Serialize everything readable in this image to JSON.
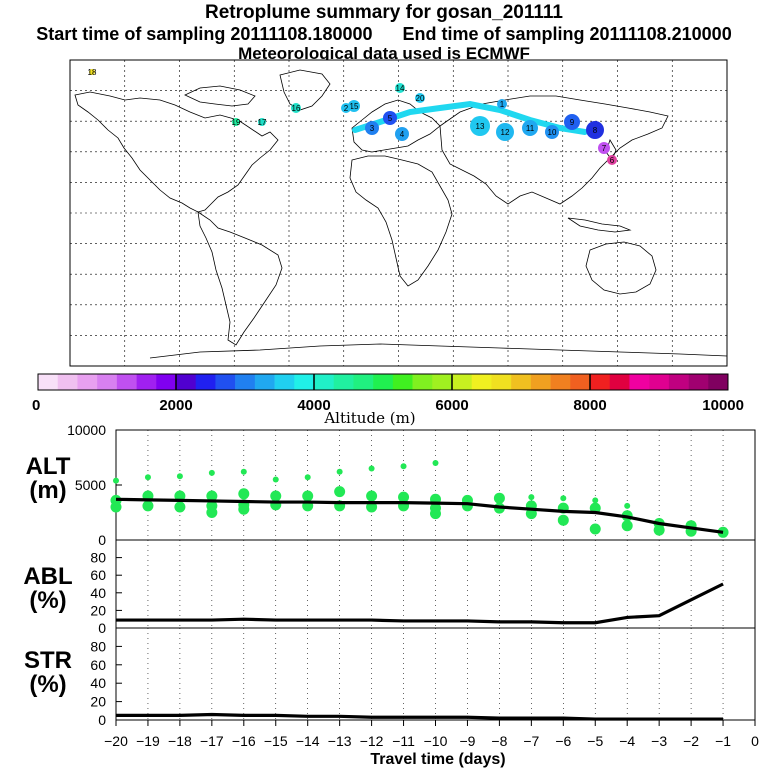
{
  "header": {
    "title": "Retroplume summary for gosan_201111",
    "start_label": "Start time of sampling 20111108.180000",
    "end_label": "End time of sampling 20111108.210000",
    "met_label": "Meteorological data used is ECMWF"
  },
  "colorbar": {
    "colors": [
      "#f8e0f8",
      "#f0c0f0",
      "#e8a0f0",
      "#d880f0",
      "#c050f0",
      "#a020f0",
      "#8000f0",
      "#5000d0",
      "#2020f0",
      "#2050f0",
      "#2080f0",
      "#20a8f0",
      "#20d0f0",
      "#20f0e8",
      "#20f0c8",
      "#20f0a0",
      "#20f080",
      "#20f050",
      "#40f020",
      "#80f020",
      "#a0f020",
      "#c8f020",
      "#f0f020",
      "#f0e020",
      "#f0c020",
      "#f0a020",
      "#f08020",
      "#f06020",
      "#f02020",
      "#e00040",
      "#f000a0",
      "#e00090",
      "#c00080",
      "#a00070",
      "#800060"
    ],
    "tick_labels": [
      "0",
      "2000",
      "4000",
      "6000",
      "8000",
      "10000"
    ],
    "title": "Altitude (m)"
  },
  "map": {
    "numbers": [
      "16",
      "17",
      "19",
      "15",
      "14",
      "20",
      "13",
      "12",
      "11",
      "10",
      "9",
      "8",
      "7",
      "6",
      "5",
      "4",
      "3",
      "2",
      "1",
      "18"
    ]
  },
  "chart_data": [
    {
      "type": "line",
      "panel": "ALT",
      "ylabel": "ALT",
      "yunit": "(m)",
      "ylim": [
        0,
        10000
      ],
      "yticks": [
        "10000",
        "5000",
        "0"
      ],
      "x": [
        -20,
        -19,
        -18,
        -17,
        -16,
        -15,
        -14,
        -13,
        -12,
        -11,
        -10,
        -9,
        -8,
        -7,
        -6,
        -5,
        -4,
        -3,
        -2,
        -1
      ],
      "values": [
        3700,
        3650,
        3600,
        3550,
        3500,
        3450,
        3450,
        3400,
        3400,
        3400,
        3350,
        3300,
        3000,
        2800,
        2600,
        2500,
        2100,
        1500,
        1100,
        700
      ],
      "scatter_color": "#22e855",
      "scatter_y": [
        [
          5400,
          3600,
          3000
        ],
        [
          5700,
          4000,
          3100
        ],
        [
          5800,
          4000,
          3000
        ],
        [
          6100,
          4000,
          3100,
          2500
        ],
        [
          6200,
          4200,
          3200,
          2800
        ],
        [
          5500,
          4000,
          3200
        ],
        [
          5700,
          4000,
          3100
        ],
        [
          6200,
          4400,
          3100
        ],
        [
          6500,
          4000,
          3000
        ],
        [
          6700,
          3900,
          3100
        ],
        [
          7000,
          3700,
          2900,
          2400
        ],
        [
          3600,
          3100
        ],
        [
          3800,
          2900
        ],
        [
          3900,
          3100,
          2400
        ],
        [
          3800,
          2900,
          1800
        ],
        [
          3600,
          2900,
          1000
        ],
        [
          3100,
          2200,
          1300
        ],
        [
          1500,
          900
        ],
        [
          1300,
          800
        ],
        [
          700
        ]
      ]
    },
    {
      "type": "line",
      "panel": "ABL",
      "ylabel": "ABL",
      "yunit": "(%)",
      "ylim": [
        0,
        100
      ],
      "yticks": [
        "80",
        "60",
        "40",
        "20",
        "0"
      ],
      "x": [
        -20,
        -19,
        -18,
        -17,
        -16,
        -15,
        -14,
        -13,
        -12,
        -11,
        -10,
        -9,
        -8,
        -7,
        -6,
        -5,
        -4,
        -3,
        -2,
        -1
      ],
      "values": [
        9,
        9,
        9,
        9,
        10,
        9,
        9,
        9,
        9,
        8,
        8,
        8,
        7,
        7,
        6,
        6,
        12,
        14,
        32,
        50
      ]
    },
    {
      "type": "line",
      "panel": "STR",
      "ylabel": "STR",
      "yunit": "(%)",
      "ylim": [
        0,
        100
      ],
      "yticks": [
        "80",
        "60",
        "40",
        "20",
        "0"
      ],
      "x": [
        -20,
        -19,
        -18,
        -17,
        -16,
        -15,
        -14,
        -13,
        -12,
        -11,
        -10,
        -9,
        -8,
        -7,
        -6,
        -5,
        -4,
        -3,
        -2,
        -1
      ],
      "values": [
        5,
        5,
        5,
        6,
        5,
        5,
        4,
        4,
        3,
        3,
        3,
        3,
        2,
        2,
        2,
        1,
        1,
        1,
        1,
        1
      ]
    }
  ],
  "xaxis": {
    "tick_labels": [
      "−20",
      "−19",
      "−18",
      "−17",
      "−16",
      "−15",
      "−14",
      "−13",
      "−12",
      "−11",
      "−10",
      "−9",
      "−8",
      "−7",
      "−6",
      "−5",
      "−4",
      "−3",
      "−2",
      "−1",
      "0"
    ],
    "title": "Travel time (days)"
  }
}
